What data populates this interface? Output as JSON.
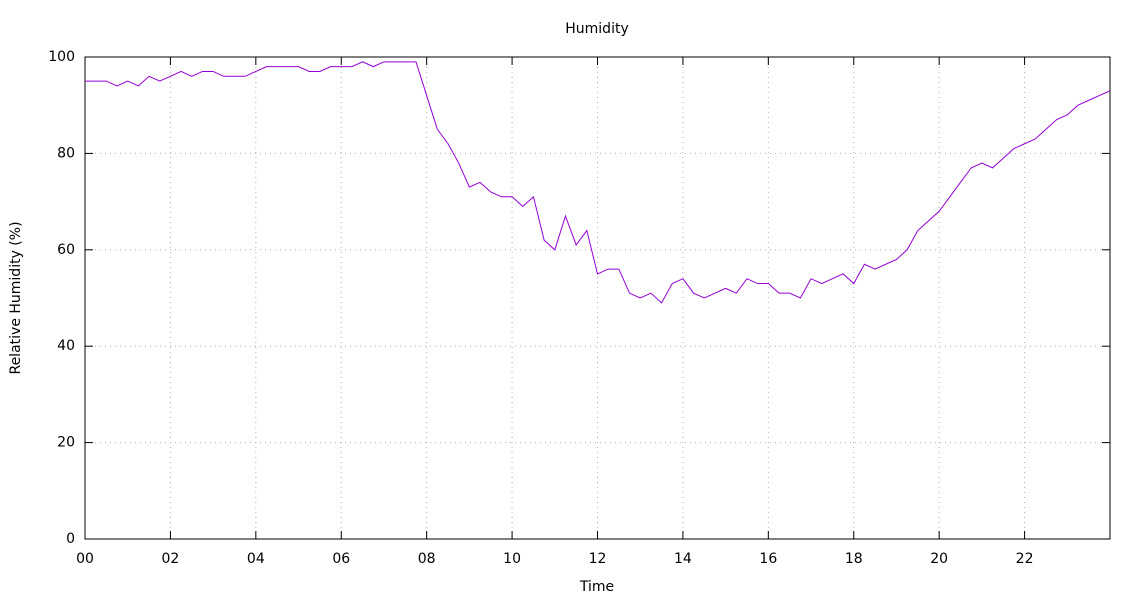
{
  "chart_data": {
    "type": "line",
    "title": "Humidity",
    "x_label": "Time",
    "y_label": "Relative Humidity (%)",
    "x": [
      0,
      0.25,
      0.5,
      0.75,
      1,
      1.25,
      1.5,
      1.75,
      2,
      2.25,
      2.5,
      2.75,
      3,
      3.25,
      3.5,
      3.75,
      4,
      4.25,
      4.5,
      4.75,
      5,
      5.25,
      5.5,
      5.75,
      6,
      6.25,
      6.5,
      6.75,
      7,
      7.25,
      7.5,
      7.75,
      8,
      8.25,
      8.5,
      8.75,
      9,
      9.25,
      9.5,
      9.75,
      10,
      10.25,
      10.5,
      10.75,
      11,
      11.25,
      11.5,
      11.75,
      12,
      12.25,
      12.5,
      12.75,
      13,
      13.25,
      13.5,
      13.75,
      14,
      14.25,
      14.5,
      14.75,
      15,
      15.25,
      15.5,
      15.75,
      16,
      16.25,
      16.5,
      16.75,
      17,
      17.25,
      17.5,
      17.75,
      18,
      18.25,
      18.5,
      18.75,
      19,
      19.25,
      19.5,
      19.75,
      20,
      20.25,
      20.5,
      20.75,
      21,
      21.25,
      21.5,
      21.75,
      22,
      22.25,
      22.5,
      22.75,
      23,
      23.25,
      23.5,
      23.75,
      24
    ],
    "series": [
      {
        "name": "Humidity",
        "color": "#9400d3",
        "values": [
          95,
          95,
          95,
          94,
          95,
          94,
          96,
          95,
          96,
          97,
          96,
          97,
          97,
          96,
          96,
          96,
          97,
          98,
          98,
          98,
          98,
          97,
          97,
          98,
          98,
          98,
          99,
          98,
          99,
          99,
          99,
          99,
          92,
          85,
          82,
          78,
          73,
          74,
          72,
          71,
          71,
          69,
          71,
          62,
          60,
          67,
          61,
          64,
          55,
          56,
          56,
          51,
          50,
          51,
          49,
          53,
          54,
          51,
          50,
          51,
          52,
          51,
          54,
          53,
          53,
          51,
          51,
          50,
          54,
          53,
          54,
          55,
          53,
          57,
          56,
          57,
          58,
          60,
          64,
          66,
          68,
          71,
          74,
          77,
          78,
          77,
          79,
          81,
          82,
          83,
          85,
          87,
          88,
          90,
          91,
          92,
          93
        ]
      }
    ],
    "xlim": [
      0,
      24
    ],
    "xticks": [
      {
        "value": 0,
        "label": "00"
      },
      {
        "value": 2,
        "label": "02"
      },
      {
        "value": 4,
        "label": "04"
      },
      {
        "value": 6,
        "label": "06"
      },
      {
        "value": 8,
        "label": "08"
      },
      10,
      12,
      14,
      16,
      18,
      20,
      22
    ],
    "ylim": [
      0,
      100
    ],
    "yticks": [
      0,
      20,
      40,
      60,
      80,
      100
    ],
    "grid": true
  }
}
